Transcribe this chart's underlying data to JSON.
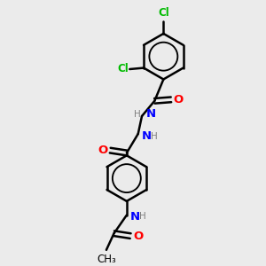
{
  "bg_color": "#ebebeb",
  "bond_color": "#000000",
  "bond_width": 1.8,
  "atom_colors": {
    "C": "#000000",
    "H": "#808080",
    "N": "#0000ff",
    "O": "#ff0000",
    "Cl": "#00bb00"
  },
  "font_size": 8.5,
  "fig_size": [
    3.0,
    3.0
  ],
  "dpi": 100
}
